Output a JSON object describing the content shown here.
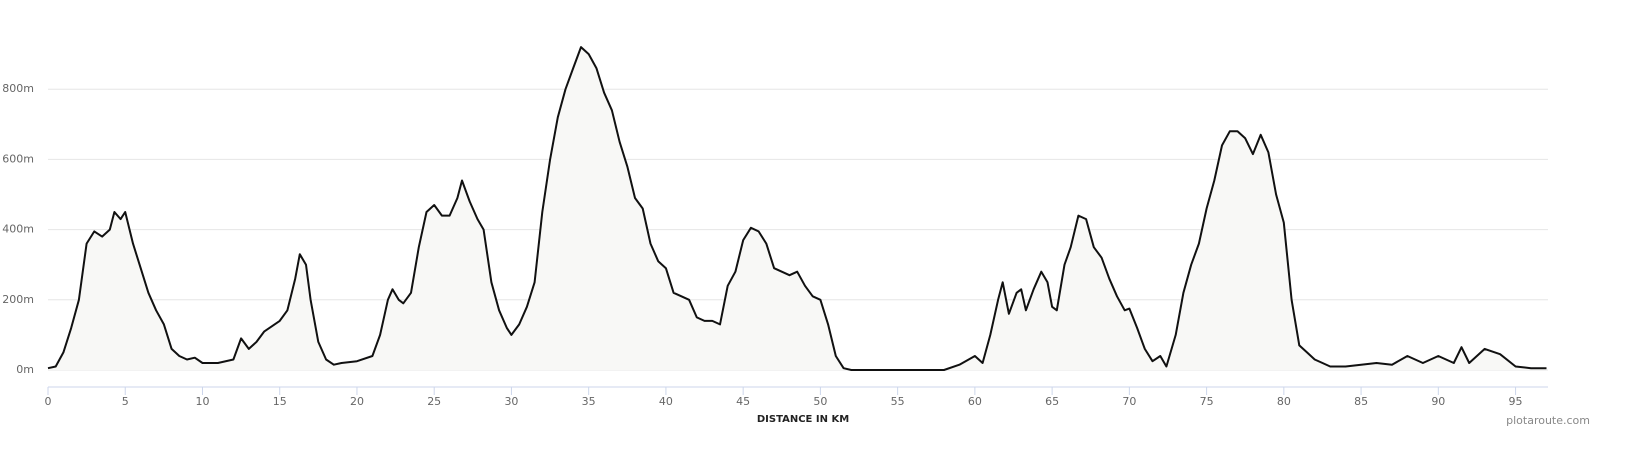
{
  "chart_data": {
    "type": "line",
    "x_label": "DISTANCE IN KM",
    "credit": "plotaroute.com",
    "x": [
      0,
      0.5,
      1,
      1.5,
      2,
      2.5,
      3,
      3.5,
      4,
      4.3,
      4.7,
      5,
      5.5,
      6,
      6.5,
      7,
      7.5,
      8,
      8.5,
      9,
      9.5,
      10,
      11,
      12,
      12.5,
      13,
      13.5,
      14,
      15,
      15.5,
      16,
      16.3,
      16.7,
      17,
      17.5,
      18,
      18.5,
      19,
      20,
      21,
      21.5,
      22,
      22.3,
      22.7,
      23,
      23.5,
      24,
      24.5,
      25,
      25.5,
      26,
      26.5,
      26.8,
      27.3,
      27.8,
      28.2,
      28.7,
      29.2,
      29.7,
      30,
      30.5,
      31,
      31.5,
      32,
      32.5,
      33,
      33.5,
      34,
      34.5,
      35,
      35.5,
      36,
      36.5,
      37,
      37.5,
      38,
      38.5,
      39,
      39.5,
      40,
      40.5,
      41,
      41.5,
      42,
      42.5,
      43,
      43.5,
      44,
      44.5,
      45,
      45.5,
      46,
      46.5,
      47,
      47.5,
      48,
      48.5,
      49,
      49.5,
      50,
      50.5,
      51,
      51.5,
      52,
      55,
      58,
      59,
      60,
      60.5,
      61,
      61.5,
      61.8,
      62.2,
      62.7,
      63,
      63.3,
      63.8,
      64.3,
      64.7,
      65,
      65.3,
      65.8,
      66.2,
      66.7,
      67.2,
      67.7,
      68.2,
      68.7,
      69.2,
      69.7,
      70,
      70.5,
      71,
      71.5,
      72,
      72.4,
      73,
      73.5,
      74,
      74.5,
      75,
      75.5,
      76,
      76.5,
      77,
      77.5,
      78,
      78.5,
      79,
      79.5,
      80,
      80.5,
      81,
      81.5,
      82,
      82.5,
      83,
      84,
      85,
      86,
      87,
      88,
      89,
      90,
      91,
      91.5,
      92,
      93,
      94,
      95,
      96,
      97
    ],
    "series": [
      {
        "color": "#111111",
        "fill": "#f8f8f6",
        "values": [
          5,
          10,
          50,
          120,
          200,
          360,
          395,
          380,
          400,
          450,
          430,
          450,
          360,
          290,
          220,
          170,
          130,
          60,
          40,
          30,
          35,
          20,
          20,
          30,
          90,
          60,
          80,
          110,
          140,
          170,
          260,
          330,
          300,
          200,
          80,
          30,
          15,
          20,
          25,
          40,
          100,
          200,
          230,
          200,
          190,
          220,
          350,
          450,
          470,
          440,
          440,
          490,
          540,
          480,
          430,
          400,
          250,
          170,
          120,
          100,
          130,
          180,
          250,
          450,
          600,
          720,
          800,
          860,
          920,
          900,
          860,
          790,
          740,
          650,
          580,
          490,
          460,
          360,
          310,
          290,
          220,
          210,
          200,
          150,
          140,
          140,
          130,
          240,
          280,
          370,
          405,
          395,
          360,
          290,
          280,
          270,
          280,
          240,
          210,
          200,
          130,
          40,
          5,
          0,
          0,
          0,
          15,
          40,
          20,
          100,
          200,
          250,
          160,
          220,
          230,
          170,
          230,
          280,
          250,
          180,
          170,
          300,
          350,
          440,
          430,
          350,
          320,
          260,
          210,
          170,
          175,
          120,
          60,
          25,
          40,
          10,
          100,
          220,
          300,
          360,
          460,
          540,
          640,
          680,
          680,
          660,
          615,
          670,
          620,
          500,
          420,
          200,
          70,
          50,
          30,
          20,
          10,
          10,
          15,
          20,
          15,
          40,
          20,
          40,
          20,
          65,
          20,
          60,
          45,
          10,
          5,
          5
        ]
      }
    ],
    "xlim": [
      0,
      97.1
    ],
    "xticks": [
      0,
      5,
      10,
      15,
      20,
      25,
      30,
      35,
      40,
      45,
      50,
      55,
      60,
      65,
      70,
      75,
      80,
      85,
      90,
      95
    ],
    "ylim": [
      0,
      1000
    ],
    "yticks": [
      {
        "value": 0,
        "label": "0m"
      },
      {
        "value": 200,
        "label": "200m"
      },
      {
        "value": 400,
        "label": "400m"
      },
      {
        "value": 600,
        "label": "600m"
      },
      {
        "value": 800,
        "label": "800m"
      }
    ],
    "grid": true
  }
}
